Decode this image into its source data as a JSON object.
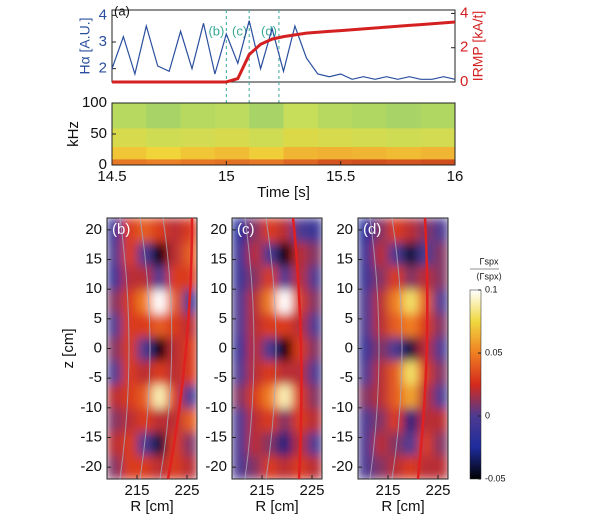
{
  "chart_data": [
    {
      "type": "line",
      "label": "(a)",
      "x": [
        14.5,
        14.55,
        14.6,
        14.65,
        14.7,
        14.75,
        14.8,
        14.85,
        14.9,
        14.95,
        15,
        15.05,
        15.1,
        15.15,
        15.2,
        15.25,
        15.3,
        15.35,
        15.4,
        15.45,
        15.5,
        15.55,
        15.6,
        15.65,
        15.7,
        15.75,
        15.8,
        15.85,
        15.9,
        15.95,
        16
      ],
      "xlim": [
        14.5,
        16
      ],
      "ylim": [
        1.5,
        4.2
      ],
      "yticks": [
        2,
        3,
        4
      ],
      "ylabel": "Hα [A.U.]",
      "y2lim": [
        0,
        4.2
      ],
      "y2ticks": [
        0,
        2,
        4
      ],
      "y2label": "IRMP [kA/t]",
      "series": [
        {
          "name": "Hα",
          "color": "#2a4f9e",
          "values": [
            2.0,
            3.2,
            1.8,
            3.6,
            2.1,
            1.9,
            3.4,
            2.0,
            3.7,
            1.8,
            3.3,
            2.2,
            3.8,
            2.0,
            3.5,
            1.9,
            3.6,
            2.4,
            1.8,
            1.7,
            1.8,
            1.6,
            1.7,
            1.6,
            1.7,
            1.6,
            1.7,
            1.6,
            1.6,
            1.7,
            1.6
          ]
        },
        {
          "name": "IRMP",
          "color": "#d42020",
          "axis": "y2",
          "values": [
            0,
            0,
            0,
            0,
            0,
            0,
            0,
            0,
            0,
            0,
            0,
            0.2,
            1.6,
            2.2,
            2.5,
            2.65,
            2.75,
            2.85,
            2.9,
            2.95,
            3.0,
            3.05,
            3.1,
            3.15,
            3.2,
            3.25,
            3.3,
            3.35,
            3.4,
            3.45,
            3.5
          ]
        }
      ],
      "markers": [
        {
          "x": 15.0,
          "label": "(b)"
        },
        {
          "x": 15.1,
          "label": "(c)"
        },
        {
          "x": 15.23,
          "label": "(d)"
        }
      ],
      "marker_color": "#3aa898"
    },
    {
      "type": "heatmap",
      "x_edges": [
        14.5,
        14.65,
        14.8,
        14.95,
        15.1,
        15.25,
        15.4,
        15.55,
        15.7,
        15.85,
        16
      ],
      "y_edges": [
        0,
        10,
        30,
        60,
        100
      ],
      "values": [
        [
          0.8,
          0.78,
          0.8,
          0.82,
          0.8,
          0.85,
          0.9,
          0.92,
          0.9,
          0.92
        ],
        [
          0.55,
          0.5,
          0.55,
          0.58,
          0.52,
          0.6,
          0.62,
          0.6,
          0.58,
          0.6
        ],
        [
          0.35,
          0.3,
          0.32,
          0.35,
          0.3,
          0.38,
          0.35,
          0.33,
          0.3,
          0.32
        ],
        [
          0.2,
          0.15,
          0.2,
          0.22,
          0.15,
          0.25,
          0.2,
          0.18,
          0.15,
          0.18
        ]
      ],
      "clim": [
        0,
        1
      ],
      "colormap": [
        "#7cc47a",
        "#c6de5a",
        "#f0d43a",
        "#ef8a28",
        "#c2301a"
      ],
      "xlim": [
        14.5,
        16
      ],
      "xticks": [
        14.5,
        15,
        15.5,
        16
      ],
      "xlabel": "Time [s]",
      "ylim": [
        0,
        100
      ],
      "yticks": [
        0,
        50,
        100
      ],
      "ylabel": "kHz",
      "smooth": false
    },
    {
      "type": "heatmap",
      "label": "(b)",
      "x_edges": [
        209,
        212,
        215,
        218,
        221,
        224,
        227
      ],
      "y_edges": [
        -22,
        -18,
        -14,
        -10,
        -6,
        -2,
        2,
        6,
        10,
        14,
        18,
        22
      ],
      "values": [
        [
          0.01,
          0.03,
          0.03,
          0.02,
          0.03,
          0.02
        ],
        [
          0.02,
          0.03,
          0.0,
          -0.04,
          0.03,
          0.01
        ],
        [
          0.01,
          0.02,
          0.03,
          0.02,
          0.02,
          0.04
        ],
        [
          0.02,
          0.03,
          0.04,
          0.09,
          0.03,
          0.0
        ],
        [
          0.0,
          0.03,
          0.02,
          0.03,
          0.02,
          0.03
        ],
        [
          0.01,
          0.03,
          0.0,
          -0.05,
          0.02,
          0.03
        ],
        [
          0.0,
          0.03,
          0.03,
          0.04,
          0.03,
          0.02
        ],
        [
          0.01,
          0.03,
          0.05,
          0.1,
          0.04,
          0.0
        ],
        [
          -0.01,
          0.02,
          0.02,
          0.0,
          0.03,
          0.03
        ],
        [
          0.0,
          0.03,
          0.0,
          -0.05,
          0.02,
          0.04
        ],
        [
          -0.01,
          0.03,
          0.04,
          0.03,
          0.02,
          0.03
        ]
      ],
      "xlim": [
        209,
        227
      ],
      "xticks": [
        215,
        225
      ],
      "xlabel": "R [cm]",
      "ylim": [
        -22,
        22
      ],
      "yticks": [
        -20,
        -15,
        -10,
        -5,
        0,
        5,
        10,
        15,
        20
      ],
      "ylabel": "z [cm]",
      "smooth": true
    },
    {
      "type": "heatmap",
      "label": "(c)",
      "x_edges": [
        209,
        212,
        215,
        218,
        221,
        224,
        227
      ],
      "y_edges": [
        -22,
        -18,
        -14,
        -10,
        -6,
        -2,
        2,
        6,
        10,
        14,
        18,
        22
      ],
      "values": [
        [
          0.0,
          0.01,
          0.03,
          0.02,
          0.03,
          0.02
        ],
        [
          0.0,
          0.02,
          0.01,
          -0.03,
          0.02,
          0.0
        ],
        [
          0.0,
          0.02,
          0.03,
          0.01,
          0.03,
          0.02
        ],
        [
          0.01,
          0.03,
          0.05,
          0.09,
          0.03,
          0.01
        ],
        [
          0.0,
          0.02,
          0.03,
          0.02,
          0.02,
          0.0
        ],
        [
          -0.01,
          0.02,
          0.0,
          -0.05,
          0.03,
          0.01
        ],
        [
          0.0,
          0.02,
          0.03,
          0.03,
          0.02,
          0.0
        ],
        [
          0.0,
          0.02,
          0.05,
          0.1,
          0.03,
          0.01
        ],
        [
          -0.01,
          0.01,
          0.03,
          0.0,
          0.02,
          0.0
        ],
        [
          -0.01,
          0.02,
          0.0,
          -0.05,
          0.02,
          0.01
        ],
        [
          -0.02,
          0.01,
          0.03,
          0.02,
          0.0,
          -0.01
        ]
      ],
      "xlim": [
        209,
        227
      ],
      "xticks": [
        215,
        225
      ],
      "xlabel": "R [cm]",
      "ylim": [
        -22,
        22
      ],
      "yticks": [
        -20,
        -15,
        -10,
        -5,
        0,
        5,
        10,
        15,
        20
      ],
      "smooth": true
    },
    {
      "type": "heatmap",
      "label": "(d)",
      "x_edges": [
        209,
        212,
        215,
        218,
        221,
        224,
        227
      ],
      "y_edges": [
        -22,
        -18,
        -14,
        -10,
        -6,
        -2,
        2,
        6,
        10,
        14,
        18,
        22
      ],
      "values": [
        [
          0.0,
          0.01,
          0.02,
          0.03,
          0.02,
          0.02
        ],
        [
          0.0,
          0.02,
          0.01,
          0.0,
          0.03,
          0.01
        ],
        [
          0.0,
          0.01,
          0.03,
          -0.03,
          0.02,
          0.02
        ],
        [
          0.01,
          0.02,
          0.04,
          0.06,
          0.02,
          0.0
        ],
        [
          0.0,
          0.02,
          0.04,
          0.08,
          0.03,
          0.01
        ],
        [
          -0.01,
          0.01,
          0.0,
          -0.04,
          0.02,
          0.0
        ],
        [
          0.0,
          0.02,
          0.04,
          0.05,
          0.03,
          0.01
        ],
        [
          0.0,
          0.02,
          0.05,
          0.08,
          0.04,
          0.0
        ],
        [
          -0.01,
          0.01,
          0.03,
          0.01,
          0.02,
          0.01
        ],
        [
          -0.01,
          0.02,
          0.0,
          -0.04,
          0.0,
          0.01
        ],
        [
          -0.02,
          0.01,
          0.03,
          0.02,
          0.01,
          0.0
        ]
      ],
      "xlim": [
        209,
        227
      ],
      "xticks": [
        215,
        225
      ],
      "xlabel": "R [cm]",
      "ylim": [
        -22,
        22
      ],
      "yticks": [
        -20,
        -15,
        -10,
        -5,
        0,
        5,
        10,
        15,
        20
      ],
      "smooth": true
    },
    {
      "type": "colorbar",
      "clim": [
        -0.05,
        0.1
      ],
      "colormap": [
        "#000000",
        "#1e2c9c",
        "#4e3a92",
        "#d42a1c",
        "#f07f22",
        "#f0d840",
        "#ffffff"
      ],
      "yticks": [
        0.1,
        0.05,
        0,
        -0.05
      ],
      "label_numerator": "Γspx",
      "label_denominator": "⟨Γspx⟩"
    }
  ]
}
